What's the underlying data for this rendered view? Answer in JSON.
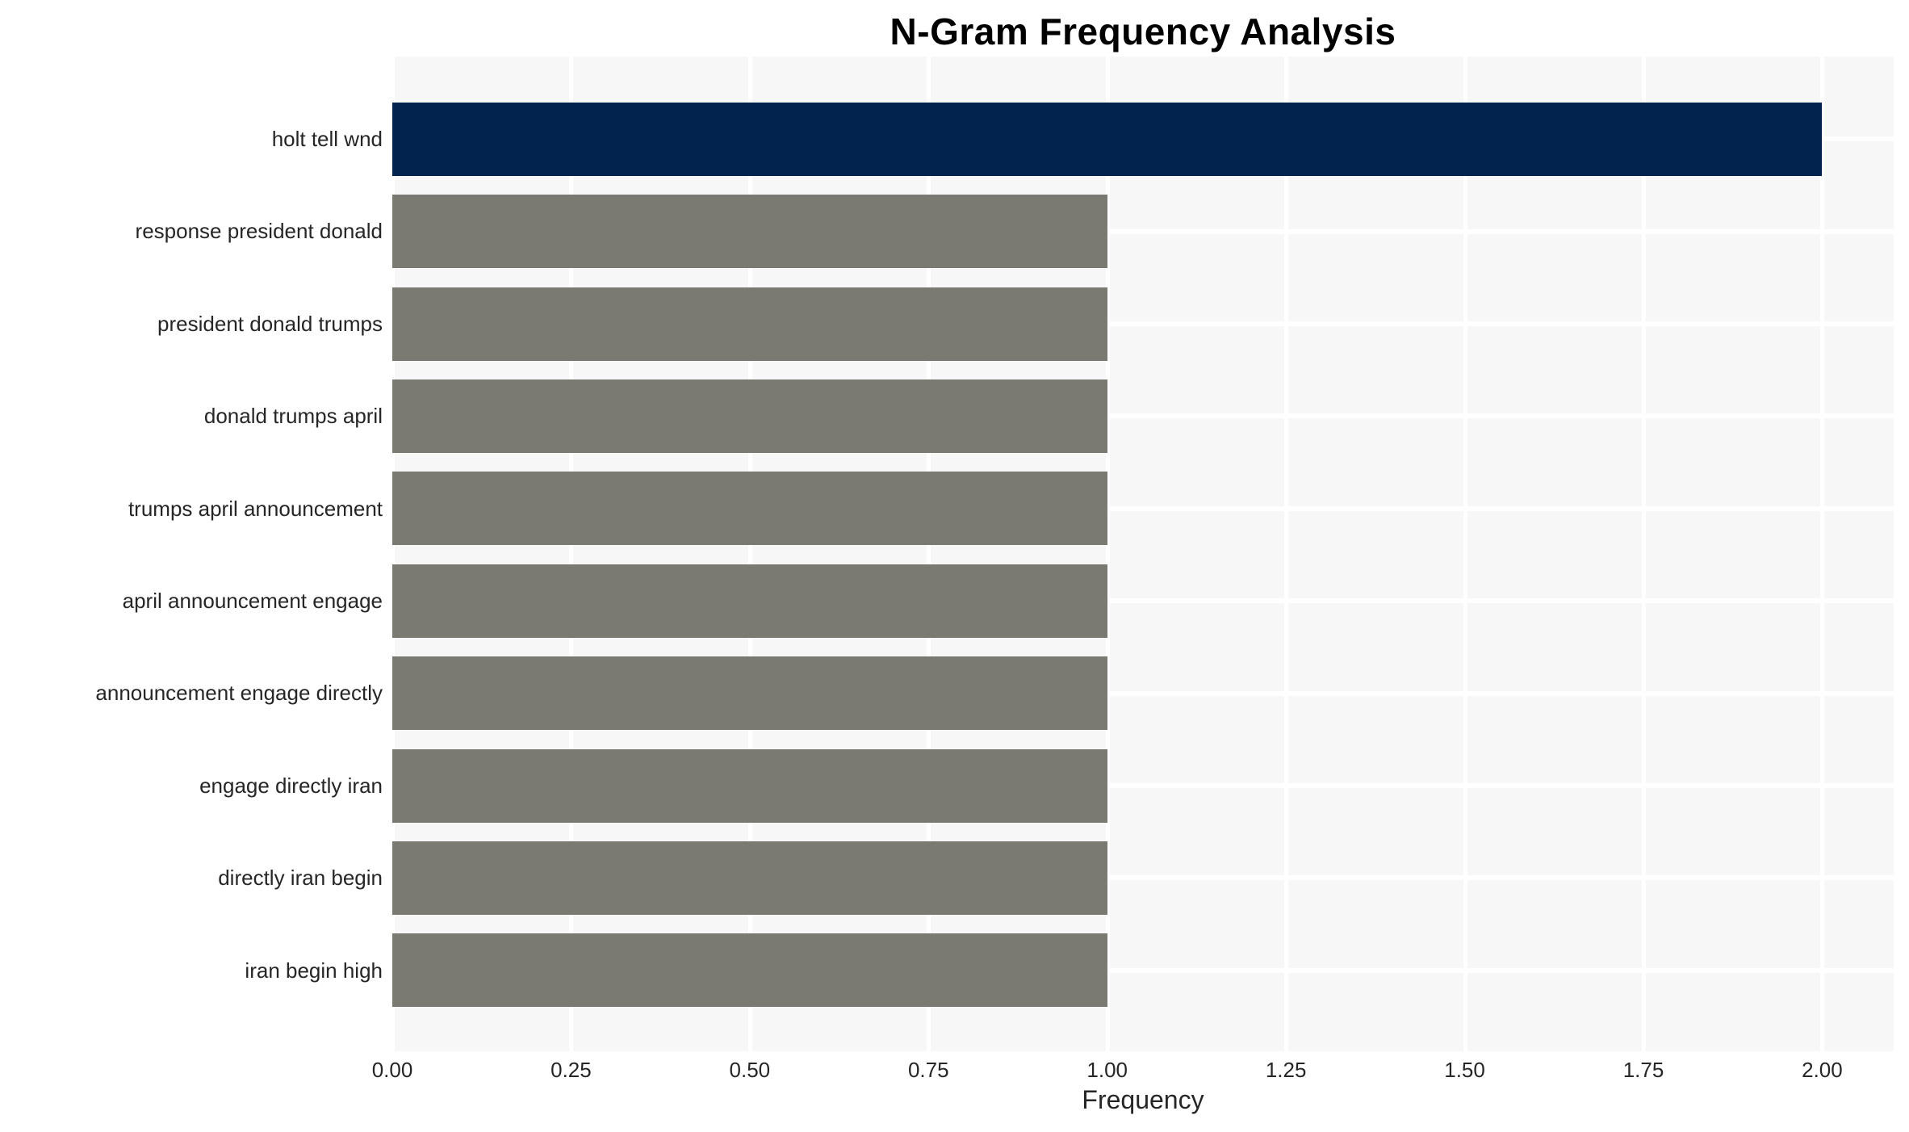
{
  "title": "N-Gram Frequency Analysis",
  "chart_data": {
    "type": "bar",
    "orientation": "horizontal",
    "title": "N-Gram Frequency Analysis",
    "xlabel": "Frequency",
    "ylabel": "",
    "categories": [
      "holt tell wnd",
      "response president donald",
      "president donald trumps",
      "donald trumps april",
      "trumps april announcement",
      "april announcement engage",
      "announcement engage directly",
      "engage directly iran",
      "directly iran begin",
      "iran begin high"
    ],
    "values": [
      2,
      1,
      1,
      1,
      1,
      1,
      1,
      1,
      1,
      1
    ],
    "xlim": [
      0,
      2.1
    ],
    "xticks": [
      0,
      0.25,
      0.5,
      0.75,
      1,
      1.25,
      1.5,
      1.75,
      2
    ],
    "xtick_labels": [
      "0.00",
      "0.25",
      "0.50",
      "0.75",
      "1.00",
      "1.25",
      "1.50",
      "1.75",
      "2.00"
    ],
    "grid": true,
    "legend": false,
    "colors": {
      "highlight_bar": "#02234d",
      "default_bar": "#7a7972",
      "plot_background": "#f7f7f7",
      "gridline": "#ffffff",
      "text": "#262626",
      "title_text": "#000000",
      "figure_background": "#ffffff"
    }
  }
}
